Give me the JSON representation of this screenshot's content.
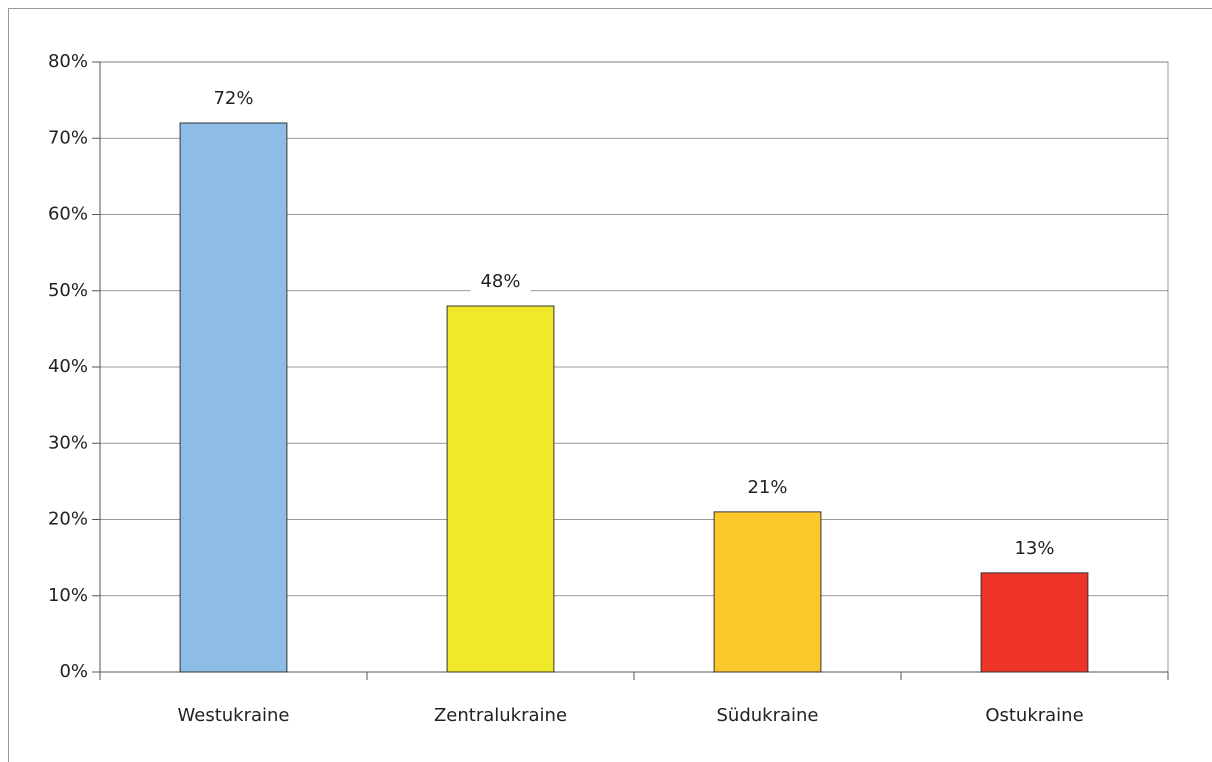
{
  "chart_data": {
    "type": "bar",
    "categories": [
      "Westukraine",
      "Zentralukraine",
      "Südukraine",
      "Ostukraine"
    ],
    "values": [
      72,
      48,
      21,
      13
    ],
    "value_labels": [
      "72%",
      "48%",
      "21%",
      "13%"
    ],
    "colors": [
      "#8dbde6",
      "#f0e92a",
      "#fdc82c",
      "#ee3429"
    ],
    "ylim": [
      0,
      80
    ],
    "yticks": [
      {
        "value": 0,
        "label": "0%"
      },
      {
        "value": 10,
        "label": "10%"
      },
      {
        "value": 20,
        "label": "20%"
      },
      {
        "value": 30,
        "label": "30%"
      },
      {
        "value": 40,
        "label": "40%"
      },
      {
        "value": 50,
        "label": "50%"
      },
      {
        "value": 60,
        "label": "60%"
      },
      {
        "value": 70,
        "label": "70%"
      },
      {
        "value": 80,
        "label": "80%"
      }
    ],
    "grid": true
  }
}
